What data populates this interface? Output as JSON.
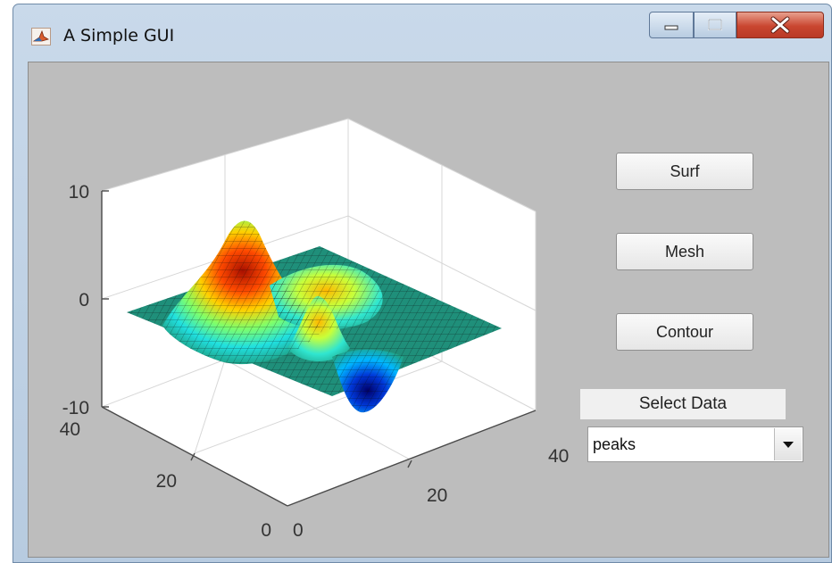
{
  "window": {
    "title": "A Simple GUI"
  },
  "title_bar": {
    "app_icon": "matlab-membrane-icon",
    "controls": [
      "minimize-icon",
      "maximize-icon",
      "close-icon"
    ],
    "close_color": "#c94630"
  },
  "buttons": {
    "surf": "Surf",
    "mesh": "Mesh",
    "contour": "Contour"
  },
  "select_data": {
    "label": "Select Data",
    "value": "peaks"
  },
  "plot": {
    "type": "surf",
    "dataset": "peaks",
    "z_ticks": [
      "10",
      "0",
      "-10"
    ],
    "y_ticks": [
      "40",
      "20",
      "0"
    ],
    "x_ticks": [
      "0",
      "20",
      "40"
    ],
    "colormap": [
      "#00007f",
      "#0050ff",
      "#00dfff",
      "#7fff7f",
      "#ffd400",
      "#ff3a00",
      "#7f0000"
    ]
  }
}
